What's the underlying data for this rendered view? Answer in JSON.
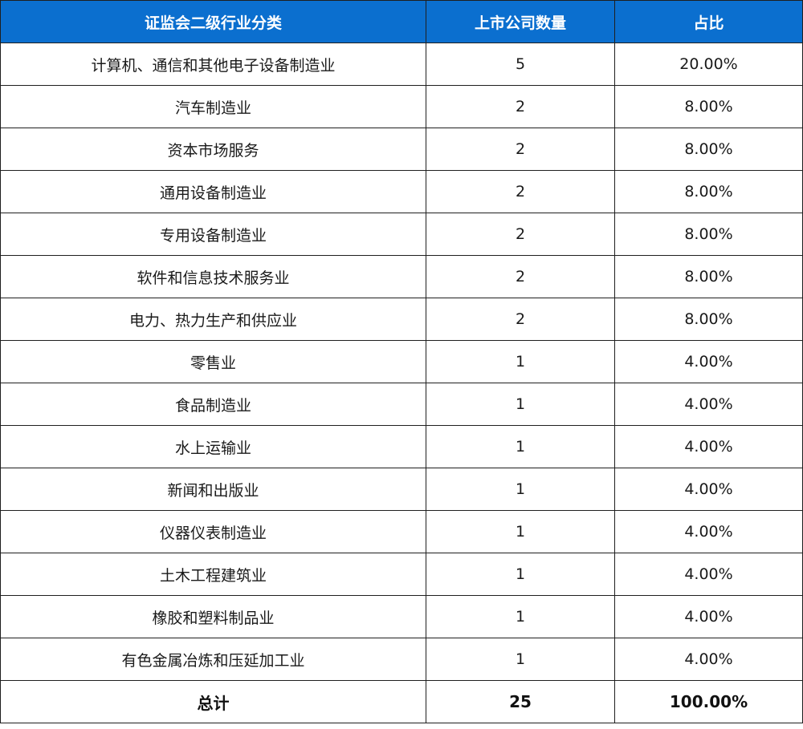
{
  "table": {
    "headers": [
      "证监会二级行业分类",
      "上市公司数量",
      "占比"
    ],
    "rows": [
      {
        "industry": "计算机、通信和其他电子设备制造业",
        "count": "5",
        "share": "20.00%"
      },
      {
        "industry": "汽车制造业",
        "count": "2",
        "share": "8.00%"
      },
      {
        "industry": "资本市场服务",
        "count": "2",
        "share": "8.00%"
      },
      {
        "industry": "通用设备制造业",
        "count": "2",
        "share": "8.00%"
      },
      {
        "industry": "专用设备制造业",
        "count": "2",
        "share": "8.00%"
      },
      {
        "industry": "软件和信息技术服务业",
        "count": "2",
        "share": "8.00%"
      },
      {
        "industry": "电力、热力生产和供应业",
        "count": "2",
        "share": "8.00%"
      },
      {
        "industry": "零售业",
        "count": "1",
        "share": "4.00%"
      },
      {
        "industry": "食品制造业",
        "count": "1",
        "share": "4.00%"
      },
      {
        "industry": "水上运输业",
        "count": "1",
        "share": "4.00%"
      },
      {
        "industry": "新闻和出版业",
        "count": "1",
        "share": "4.00%"
      },
      {
        "industry": "仪器仪表制造业",
        "count": "1",
        "share": "4.00%"
      },
      {
        "industry": "土木工程建筑业",
        "count": "1",
        "share": "4.00%"
      },
      {
        "industry": "橡胶和塑料制品业",
        "count": "1",
        "share": "4.00%"
      },
      {
        "industry": "有色金属冶炼和压延加工业",
        "count": "1",
        "share": "4.00%"
      }
    ],
    "total": {
      "label": "总计",
      "count": "25",
      "share": "100.00%"
    }
  },
  "colors": {
    "header_bg": "#0b6fcf",
    "header_text": "#ffffff",
    "border": "#1f1f1f"
  }
}
